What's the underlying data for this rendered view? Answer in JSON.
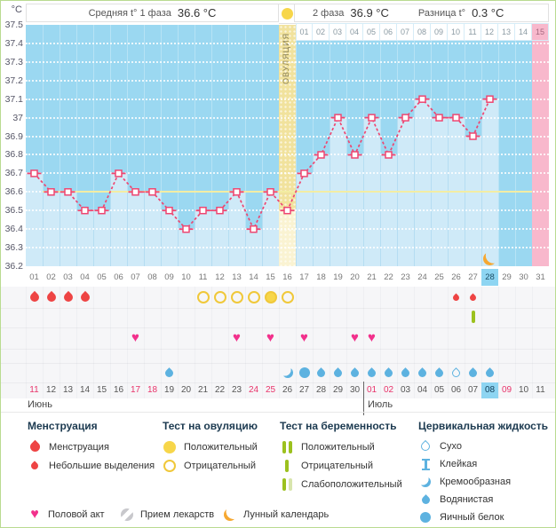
{
  "header": {
    "phase1_label": "Средняя t° 1 фаза",
    "phase1_value": "36.6 °C",
    "ovulation_marker": "positive",
    "phase2_label": "2 фаза",
    "phase2_value": "36.9 °C",
    "diff_label": "Разница t°",
    "diff_value": "0.3 °C"
  },
  "chart_data": {
    "type": "line",
    "title": "Basal body temperature cycle chart",
    "ylabel": "°C",
    "ylim": [
      36.2,
      37.5
    ],
    "ytick_labels": [
      "37.5",
      "37.4",
      "37.3",
      "37.2",
      "37.1",
      "37",
      "36.9",
      "36.8",
      "36.7",
      "36.6",
      "36.5",
      "36.4",
      "36.3",
      "36.2"
    ],
    "x_cycle_days": [
      "01",
      "02",
      "03",
      "04",
      "05",
      "06",
      "07",
      "08",
      "09",
      "10",
      "11",
      "12",
      "13",
      "14",
      "15",
      "16",
      "17",
      "18",
      "19",
      "20",
      "21",
      "22",
      "23",
      "24",
      "25",
      "26",
      "27",
      "28",
      "29",
      "30",
      "31"
    ],
    "temps_by_cycle_day": [
      36.7,
      36.6,
      36.6,
      36.5,
      36.5,
      36.7,
      36.6,
      36.6,
      36.5,
      36.4,
      36.5,
      36.5,
      36.6,
      36.4,
      36.6,
      36.5,
      36.7,
      36.8,
      37.0,
      36.8,
      37.0,
      36.8,
      37.0,
      37.1,
      37.0,
      37.0,
      36.9,
      37.1
    ],
    "coverline": 36.6,
    "ovulation_day": 16,
    "ovulation_label": "ОВУЛЯЦИЯ",
    "dpo_labels": [
      "01",
      "02",
      "03",
      "04",
      "05",
      "06",
      "07",
      "08",
      "09",
      "10",
      "11",
      "12",
      "13",
      "14",
      "15"
    ],
    "expected_period_day": 31,
    "lunar_day": 28,
    "today_cycle_day": 28,
    "grid": true,
    "legend_position": "bottom"
  },
  "events": {
    "menstruation_days": [
      1,
      2,
      3,
      4
    ],
    "spotting_days": [
      26,
      27
    ],
    "ovulation_test_negative_days": [
      11,
      12,
      13,
      14,
      16
    ],
    "ovulation_test_positive_days": [
      15
    ],
    "pregnancy_test_negative_days": [
      27
    ],
    "intercourse_days": [
      7,
      13,
      15,
      17,
      20,
      21
    ],
    "cervical_fluid": {
      "9": "watery",
      "16": "creamy",
      "17": "eggwhite",
      "18": "watery",
      "19": "watery",
      "20": "watery",
      "21": "watery",
      "22": "watery",
      "23": "watery",
      "24": "watery",
      "25": "watery",
      "26": "dry",
      "27": "watery",
      "28": "watery"
    }
  },
  "calendar": {
    "dates": [
      {
        "label": "11",
        "weekend": true
      },
      {
        "label": "12"
      },
      {
        "label": "13"
      },
      {
        "label": "14"
      },
      {
        "label": "15"
      },
      {
        "label": "16"
      },
      {
        "label": "17",
        "weekend": true
      },
      {
        "label": "18",
        "weekend": true
      },
      {
        "label": "19"
      },
      {
        "label": "20"
      },
      {
        "label": "21"
      },
      {
        "label": "22"
      },
      {
        "label": "23"
      },
      {
        "label": "24",
        "weekend": true
      },
      {
        "label": "25",
        "weekend": true
      },
      {
        "label": "26"
      },
      {
        "label": "27"
      },
      {
        "label": "28"
      },
      {
        "label": "29"
      },
      {
        "label": "30"
      },
      {
        "label": "01",
        "weekend": true
      },
      {
        "label": "02",
        "weekend": true
      },
      {
        "label": "03"
      },
      {
        "label": "04"
      },
      {
        "label": "05"
      },
      {
        "label": "06"
      },
      {
        "label": "07"
      },
      {
        "label": "08",
        "today": true
      },
      {
        "label": "09",
        "weekend": true
      },
      {
        "label": "10"
      },
      {
        "label": "11"
      }
    ],
    "months": [
      {
        "label": "Июнь",
        "start_day": 1
      },
      {
        "label": "Июль",
        "start_day": 21
      }
    ]
  },
  "legend": {
    "menstruation": {
      "title": "Менструация",
      "items": [
        {
          "icon": "drop-large",
          "label": "Менструация"
        },
        {
          "icon": "drop-small",
          "label": "Небольшие выделения"
        }
      ]
    },
    "ovulation_test": {
      "title": "Тест на овуляцию",
      "items": [
        {
          "icon": "circle-filled",
          "label": "Положительный"
        },
        {
          "icon": "circle-outline",
          "label": "Отрицательный"
        }
      ]
    },
    "pregnancy_test": {
      "title": "Тест на беременность",
      "items": [
        {
          "icon": "bars-positive",
          "label": "Положительный"
        },
        {
          "icon": "bar-negative",
          "label": "Отрицательный"
        },
        {
          "icon": "bars-weak",
          "label": "Слабоположительный"
        }
      ]
    },
    "cervical_fluid": {
      "title": "Цервикальная жидкость",
      "items": [
        {
          "icon": "fluid-dry",
          "label": "Сухо"
        },
        {
          "icon": "fluid-sticky",
          "label": "Клейкая"
        },
        {
          "icon": "fluid-creamy",
          "label": "Кремообразная"
        },
        {
          "icon": "fluid-watery",
          "label": "Водянистая"
        },
        {
          "icon": "fluid-eggwhite",
          "label": "Яичный белок"
        }
      ]
    },
    "extras": [
      {
        "icon": "heart",
        "label": "Половой акт"
      },
      {
        "icon": "pill",
        "label": "Прием лекарств"
      },
      {
        "icon": "moon",
        "label": "Лунный календарь"
      }
    ]
  },
  "colors": {
    "accent": "#ee4671",
    "chart_bg": "#9bd8f1",
    "area_fill": "#cfeaf8",
    "column_line": "#8fcbe9",
    "ovulation_band": "#f1e29d",
    "ovulation_band_light": "#faf3d2",
    "ovulation_text": "#8a8157",
    "expected_period_pink": "#f8b8cc",
    "coverline": "#f3eda3",
    "today_highlight": "#8ed5f2",
    "date_red": "#e8336a",
    "menses_red": "#ee4444",
    "test_yellow": "#f7d64a",
    "test_yellow_border": "#f0c83a",
    "preg_green": "#9cc11e",
    "preg_green_pale": "#d8e5ad",
    "fluid_blue": "#5db2e0",
    "heart_pink": "#f2318c",
    "moon_orange": "#f6a832",
    "pill_grey": "#c8c8cc",
    "legend_header": "#1c3a50"
  }
}
